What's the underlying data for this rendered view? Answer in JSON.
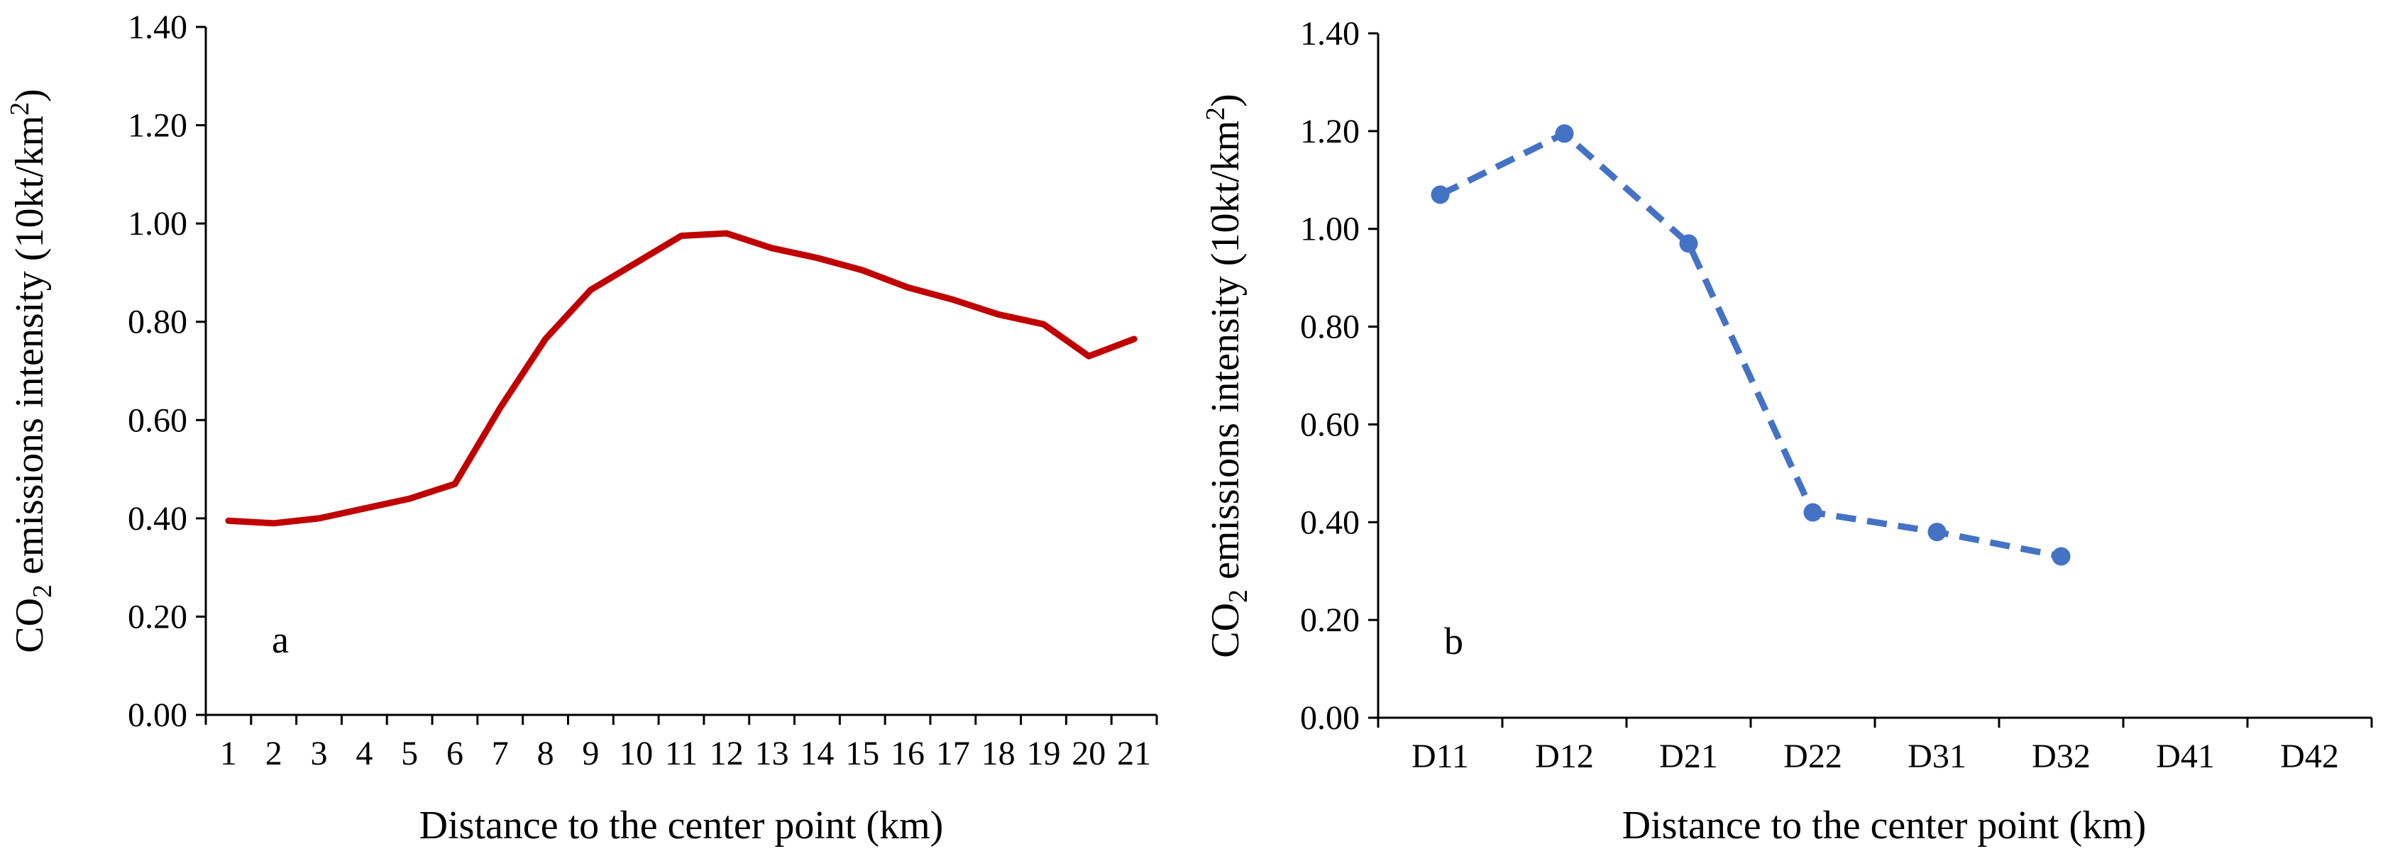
{
  "chart_data": [
    {
      "type": "line",
      "panel_label": "a",
      "categories": [
        "1",
        "2",
        "3",
        "4",
        "5",
        "6",
        "7",
        "8",
        "9",
        "10",
        "11",
        "12",
        "13",
        "14",
        "15",
        "16",
        "17",
        "18",
        "19",
        "20",
        "21"
      ],
      "series": [
        {
          "name": "CO2 emissions intensity",
          "values": [
            0.395,
            0.39,
            0.4,
            0.42,
            0.44,
            0.47,
            0.625,
            0.765,
            0.865,
            0.92,
            0.975,
            0.98,
            0.95,
            0.93,
            0.905,
            0.87,
            0.845,
            0.815,
            0.795,
            0.73,
            0.765
          ],
          "color": "#c00000",
          "style": "solid",
          "markers": false
        }
      ],
      "xlabel": "Distance to the center point (km)",
      "ylabel_prefix": "CO",
      "ylabel_sub": "2",
      "ylabel_mid": " emissions intensity (10kt/km",
      "ylabel_sup": "2",
      "ylabel_suffix": ")",
      "ylim": [
        0,
        1.4
      ],
      "yticks": [
        "0.00",
        "0.20",
        "0.40",
        "0.60",
        "0.80",
        "1.00",
        "1.20",
        "1.40"
      ]
    },
    {
      "type": "line",
      "panel_label": "b",
      "categories": [
        "D11",
        "D12",
        "D21",
        "D22",
        "D31",
        "D32",
        "D41",
        "D42"
      ],
      "series": [
        {
          "name": "CO2 emissions intensity",
          "values": [
            1.07,
            1.195,
            0.97,
            0.42,
            0.38,
            0.33,
            null,
            null
          ],
          "color": "#4472c4",
          "style": "dashed",
          "markers": true
        }
      ],
      "xlabel": "Distance to the center point (km)",
      "ylabel_prefix": "CO",
      "ylabel_sub": "2",
      "ylabel_mid": " emissions intensity (10kt/km",
      "ylabel_sup": "2",
      "ylabel_suffix": ")",
      "ylim": [
        0,
        1.4
      ],
      "yticks": [
        "0.00",
        "0.20",
        "0.40",
        "0.60",
        "0.80",
        "1.00",
        "1.20",
        "1.40"
      ]
    }
  ]
}
